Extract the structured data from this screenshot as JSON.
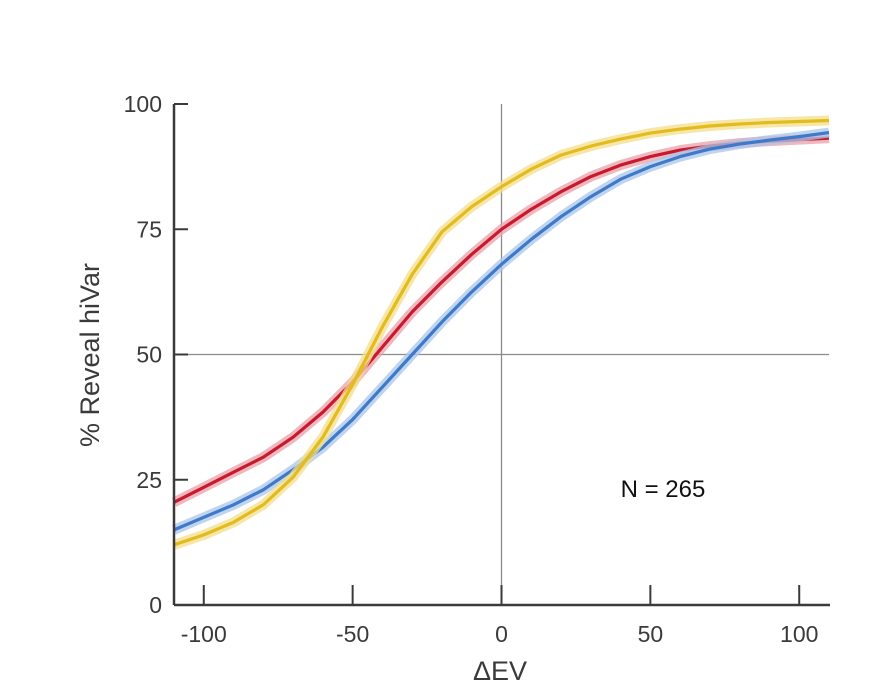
{
  "chart_data": {
    "type": "line",
    "title": "",
    "xlabel": "ΔEV",
    "ylabel": "% Reveal hiVar",
    "xlim": [
      -110,
      110
    ],
    "ylim": [
      0,
      100
    ],
    "x_ticks": [
      -100,
      -50,
      0,
      50,
      100
    ],
    "x_tick_labels": [
      "-100",
      "-50",
      "0",
      "50",
      "100"
    ],
    "y_ticks": [
      0,
      25,
      50,
      75,
      100
    ],
    "y_tick_labels": [
      "0",
      "25",
      "50",
      "75",
      "100"
    ],
    "reference_lines": {
      "x": 0,
      "y": 50
    },
    "grid": false,
    "legend": "none",
    "annotation": "N = 265",
    "x": [
      -110,
      -100,
      -90,
      -80,
      -70,
      -60,
      -50,
      -40,
      -30,
      -20,
      -10,
      0,
      10,
      20,
      30,
      40,
      50,
      60,
      70,
      80,
      90,
      100,
      110
    ],
    "series": [
      {
        "color": "#c8192e",
        "band_color": "#e8a0a8",
        "values": [
          20.5,
          23.5,
          26.5,
          29.5,
          33.5,
          38.5,
          44.5,
          51.5,
          58.5,
          64.5,
          70.0,
          75.0,
          79.0,
          82.5,
          85.5,
          87.8,
          89.5,
          90.8,
          91.6,
          92.2,
          92.6,
          92.9,
          93.2
        ]
      },
      {
        "color": "#3f79c9",
        "band_color": "#a9c6ea",
        "values": [
          15.0,
          17.5,
          20.0,
          23.0,
          27.0,
          31.5,
          37.0,
          43.5,
          50.0,
          56.5,
          62.5,
          68.0,
          73.0,
          77.5,
          81.5,
          85.0,
          87.5,
          89.5,
          91.0,
          92.0,
          92.8,
          93.5,
          94.3
        ]
      },
      {
        "color": "#e3bb1c",
        "band_color": "#f3df8c",
        "values": [
          12.0,
          14.0,
          16.5,
          20.0,
          25.5,
          33.5,
          44.0,
          55.5,
          66.0,
          74.5,
          79.5,
          83.5,
          87.0,
          89.8,
          91.6,
          93.0,
          94.2,
          95.0,
          95.6,
          96.0,
          96.3,
          96.5,
          96.7
        ]
      }
    ]
  }
}
